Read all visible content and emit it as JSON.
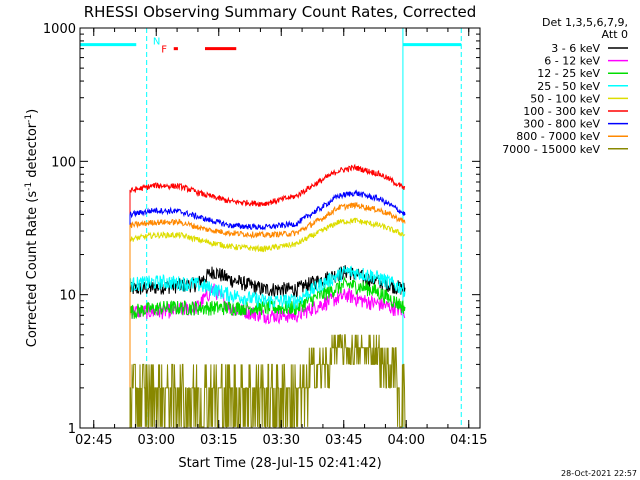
{
  "chart_data": {
    "type": "line",
    "title": "RHESSI Observing Summary Count Rates, Corrected",
    "xlabel": "Start Time (28-Jul-15 02:41:42)",
    "ylabel_prefix": "Corrected Count Rate (s",
    "ylabel_exp1": "-1",
    "ylabel_mid": " detector",
    "ylabel_exp2": "-1",
    "ylabel_suffix": ")",
    "footer_timestamp": "28-Oct-2021 22:57",
    "y_scale": "log",
    "ylim": [
      1,
      1000
    ],
    "xlim_minutes": [
      0,
      96
    ],
    "x_ticks": [
      {
        "label": "02:45",
        "min": 3.3
      },
      {
        "label": "03:00",
        "min": 18.3
      },
      {
        "label": "03:15",
        "min": 33.3
      },
      {
        "label": "03:30",
        "min": 48.3
      },
      {
        "label": "03:45",
        "min": 63.3
      },
      {
        "label": "04:00",
        "min": 78.3
      },
      {
        "label": "04:15",
        "min": 93.3
      }
    ],
    "y_ticks": [
      {
        "label": "1",
        "v": 1
      },
      {
        "label": "10",
        "v": 10
      },
      {
        "label": "100",
        "v": 100
      },
      {
        "label": "1000",
        "v": 1000
      }
    ],
    "legend_header_line1": "Det 1,3,5,6,7,9,",
    "legend_header_line2": "Att 0",
    "legend": [
      {
        "label": "3 - 6 keV",
        "color": "#000000"
      },
      {
        "label": "6 - 12 keV",
        "color": "#ff00ff"
      },
      {
        "label": "12 - 25 keV",
        "color": "#00dd00"
      },
      {
        "label": "25 - 50 keV",
        "color": "#00ffff"
      },
      {
        "label": "50 - 100 keV",
        "color": "#dddd00"
      },
      {
        "label": "100 - 300 keV",
        "color": "#ff0000"
      },
      {
        "label": "300 - 800 keV",
        "color": "#0000ff"
      },
      {
        "label": "800 - 7000 keV",
        "color": "#ff8800"
      },
      {
        "label": "7000 - 15000 keV",
        "color": "#888800"
      }
    ],
    "data_span_minutes": [
      12,
      78
    ],
    "series": [
      {
        "name": "3 - 6 keV",
        "color": "#000000",
        "x": [
          12,
          20,
          28,
          32,
          36,
          44,
          52,
          58,
          64,
          68,
          72,
          78
        ],
        "values": [
          11,
          11.5,
          12,
          15,
          13,
          11,
          11,
          13,
          15,
          13.5,
          12.5,
          11
        ]
      },
      {
        "name": "6 - 12 keV",
        "color": "#ff00ff",
        "x": [
          12,
          20,
          28,
          32,
          36,
          44,
          52,
          58,
          64,
          68,
          72,
          78
        ],
        "values": [
          7.5,
          7.5,
          8,
          11,
          8,
          7,
          7,
          8.5,
          10,
          9,
          8.5,
          7.5
        ]
      },
      {
        "name": "12 - 25 keV",
        "color": "#00dd00",
        "x": [
          12,
          20,
          28,
          36,
          44,
          52,
          58,
          64,
          70,
          78
        ],
        "values": [
          7.5,
          8,
          8,
          8,
          8,
          8,
          10,
          12,
          11,
          8
        ]
      },
      {
        "name": "25 - 50 keV",
        "color": "#00ffff",
        "x": [
          12,
          20,
          28,
          36,
          44,
          52,
          58,
          64,
          70,
          78
        ],
        "values": [
          12,
          12.5,
          12,
          10,
          9,
          9,
          12,
          15,
          14,
          11
        ]
      },
      {
        "name": "50 - 100 keV",
        "color": "#dddd00",
        "x": [
          12,
          18,
          24,
          30,
          36,
          44,
          52,
          58,
          62,
          66,
          72,
          78
        ],
        "values": [
          26,
          28,
          28,
          25,
          23,
          22,
          24,
          30,
          35,
          36,
          33,
          28
        ]
      },
      {
        "name": "100 - 300 keV",
        "color": "#ff0000",
        "x": [
          12,
          18,
          24,
          30,
          36,
          44,
          52,
          58,
          62,
          66,
          72,
          78
        ],
        "values": [
          60,
          66,
          65,
          56,
          50,
          48,
          55,
          72,
          85,
          90,
          80,
          62
        ]
      },
      {
        "name": "300 - 800 keV",
        "color": "#0000ff",
        "x": [
          12,
          18,
          24,
          30,
          36,
          44,
          52,
          58,
          62,
          66,
          72,
          78
        ],
        "values": [
          40,
          43,
          42,
          37,
          33,
          32,
          34,
          45,
          55,
          58,
          52,
          40
        ]
      },
      {
        "name": "800 - 7000 keV",
        "color": "#ff8800",
        "x": [
          12,
          18,
          24,
          30,
          36,
          44,
          52,
          58,
          62,
          66,
          72,
          78
        ],
        "values": [
          33,
          35,
          35,
          31,
          29,
          28,
          29,
          37,
          45,
          47,
          43,
          35
        ]
      },
      {
        "name": "7000 - 15000 keV",
        "color": "#888800",
        "x": [
          12,
          20,
          28,
          36,
          44,
          52,
          58,
          64,
          70,
          78
        ],
        "values": [
          2,
          2.5,
          2,
          2,
          1.8,
          2,
          3,
          4.5,
          4,
          2
        ]
      }
    ],
    "attenuator_bar": {
      "color": "#00ffff",
      "segments": [
        [
          0,
          13.5
        ],
        [
          77.5,
          91.5
        ]
      ],
      "level": 750
    },
    "event_markers": [
      {
        "label": "N",
        "color": "#00ffff",
        "min": 17.5
      },
      {
        "label": "F",
        "color": "#ff0000",
        "min": 19.5
      }
    ],
    "flag_bars": {
      "color": "#ff0000",
      "segments": [
        [
          22.5,
          23.5
        ],
        [
          30,
          37.5
        ]
      ],
      "level": 700
    },
    "vertical_lines": [
      {
        "min": 0,
        "style": "solid"
      },
      {
        "min": 16,
        "style": "dashed"
      },
      {
        "min": 77.5,
        "style": "solid"
      },
      {
        "min": 91.5,
        "style": "dashed"
      }
    ]
  }
}
